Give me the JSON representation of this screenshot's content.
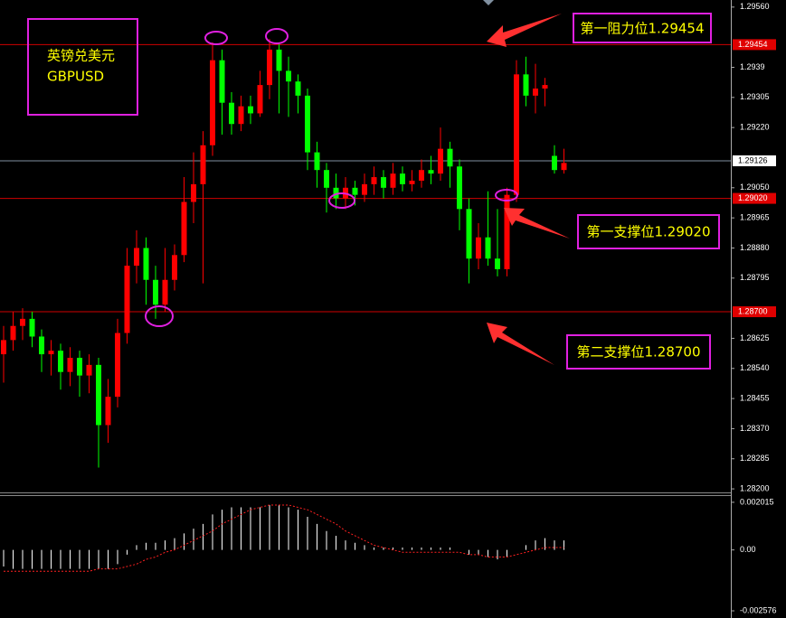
{
  "chart_data": [
    {
      "type": "candlestick",
      "title": "英镑兑美元",
      "subtitle": "GBPUSD",
      "annotations": [
        "第一阻力位1.29454",
        "第一支撑位1.29020",
        "第二支撑位1.28700"
      ],
      "up_color": "#ff0000",
      "down_color": "#00ff00",
      "open": [
        1.2858,
        1.2862,
        1.2866,
        1.2868,
        1.2863,
        1.2858,
        1.2859,
        1.2853,
        1.2857,
        1.2852,
        1.2855,
        1.2838,
        1.2846,
        1.2864,
        1.2883,
        1.2888,
        1.2879,
        1.2872,
        1.2879,
        1.2886,
        1.2901,
        1.2906,
        1.2917,
        1.2941,
        1.2929,
        1.2923,
        1.2928,
        1.2926,
        1.2934,
        1.2944,
        1.2938,
        1.2935,
        1.2931,
        1.2915,
        1.291,
        1.2905,
        1.2902,
        1.2905,
        1.2903,
        1.2906,
        1.2908,
        1.2905,
        1.2909,
        1.2906,
        1.2907,
        1.291,
        1.2909,
        1.2916,
        1.2911,
        1.2899,
        1.2885,
        1.2891,
        1.2885,
        1.2882,
        1.2903,
        1.2937,
        1.2931,
        1.2933,
        1.2914,
        1.291
      ],
      "high": [
        1.2866,
        1.287,
        1.2871,
        1.287,
        1.2865,
        1.2862,
        1.2861,
        1.286,
        1.2859,
        1.2858,
        1.2857,
        1.2851,
        1.2868,
        1.2888,
        1.2893,
        1.2891,
        1.2883,
        1.2888,
        1.2889,
        1.2908,
        1.2915,
        1.2921,
        1.2946,
        1.2944,
        1.2932,
        1.2931,
        1.2931,
        1.2938,
        1.2947,
        1.2946,
        1.2942,
        1.2937,
        1.2933,
        1.2918,
        1.2912,
        1.2909,
        1.2908,
        1.2907,
        1.2909,
        1.2911,
        1.291,
        1.2912,
        1.2911,
        1.291,
        1.2913,
        1.2914,
        1.2922,
        1.2918,
        1.2913,
        1.2902,
        1.2895,
        1.2904,
        1.2899,
        1.2905,
        1.2941,
        1.2942,
        1.294,
        1.2936,
        1.2917,
        1.2916
      ],
      "low": [
        1.285,
        1.2859,
        1.2862,
        1.286,
        1.2853,
        1.2852,
        1.2848,
        1.2849,
        1.2846,
        1.2847,
        1.2826,
        1.2833,
        1.2843,
        1.2861,
        1.2878,
        1.2872,
        1.2868,
        1.287,
        1.2876,
        1.2884,
        1.2895,
        1.2878,
        1.2914,
        1.292,
        1.292,
        1.2921,
        1.2923,
        1.2925,
        1.293,
        1.2926,
        1.2925,
        1.2926,
        1.291,
        1.2905,
        1.2898,
        1.2899,
        1.2899,
        1.29,
        1.2901,
        1.2903,
        1.2902,
        1.2903,
        1.2904,
        1.2904,
        1.2905,
        1.2906,
        1.2907,
        1.2905,
        1.2893,
        1.2878,
        1.2882,
        1.2883,
        1.288,
        1.288,
        1.2901,
        1.2928,
        1.2926,
        1.2928,
        1.2909,
        1.2909
      ],
      "close": [
        1.2862,
        1.2866,
        1.2868,
        1.2863,
        1.2858,
        1.2859,
        1.2853,
        1.2857,
        1.2852,
        1.2855,
        1.2838,
        1.2846,
        1.2864,
        1.2883,
        1.2888,
        1.2879,
        1.2872,
        1.2879,
        1.2886,
        1.2901,
        1.2906,
        1.2917,
        1.2941,
        1.2929,
        1.2923,
        1.2928,
        1.2926,
        1.2934,
        1.2944,
        1.2938,
        1.2935,
        1.2931,
        1.2915,
        1.291,
        1.2905,
        1.2902,
        1.2905,
        1.2903,
        1.2906,
        1.2908,
        1.2905,
        1.2909,
        1.2906,
        1.2907,
        1.291,
        1.2909,
        1.2916,
        1.2911,
        1.2899,
        1.2885,
        1.2891,
        1.2885,
        1.2882,
        1.2903,
        1.2937,
        1.2931,
        1.2933,
        1.2934,
        1.291,
        1.2912
      ],
      "ylim": [
        1.2819,
        1.2958
      ],
      "yticks": [
        {
          "value": 1.2956,
          "label": "1.29560"
        },
        1.2939,
        1.29305,
        {
          "value": 1.2922,
          "label": "1.29220"
        },
        {
          "value": 1.2905,
          "label": "1.29050"
        },
        1.28965,
        {
          "value": 1.2888,
          "label": "1.28880"
        },
        1.28795,
        1.28625,
        {
          "value": 1.2854,
          "label": "1.28540"
        },
        1.28455,
        {
          "value": 1.2837,
          "label": "1.28370"
        },
        1.28285,
        {
          "value": 1.282,
          "label": "1.28200"
        }
      ],
      "levels": [
        {
          "value": 1.29454,
          "color": "#d00000"
        },
        {
          "value": 1.29126,
          "color": "#8090a0"
        },
        {
          "value": 1.2902,
          "label": "1.29020",
          "color": "#d00000"
        },
        {
          "value": 1.287,
          "label": "1.28700",
          "color": "#d00000"
        }
      ]
    },
    {
      "type": "macd",
      "color": "#ffffff",
      "signal_color": "#ff2020",
      "values": [
        -0.0007,
        -0.0008,
        -0.0008,
        -0.0008,
        -0.0008,
        -0.0008,
        -0.0008,
        -0.0008,
        -0.0008,
        -0.0008,
        -0.0008,
        -0.0008,
        -0.0006,
        -0.0002,
        0.0002,
        0.0003,
        0.0003,
        0.0004,
        0.0005,
        0.0007,
        0.0009,
        0.0011,
        0.0015,
        0.0017,
        0.0018,
        0.0018,
        0.0018,
        0.0018,
        0.0019,
        0.0019,
        0.0018,
        0.0017,
        0.0014,
        0.0011,
        0.0008,
        0.0006,
        0.0004,
        0.0003,
        0.0002,
        0.0001,
        0.0001,
        0.0001,
        0.0001,
        0.0001,
        0.0001,
        0.0001,
        0.0001,
        0.0001,
        0,
        -0.0002,
        -0.0002,
        -0.0003,
        -0.0004,
        -0.0003,
        0,
        0.0002,
        0.0004,
        0.0005,
        0.0004,
        0.0004
      ],
      "signal": [
        -0.0009,
        -0.0009,
        -0.0009,
        -0.0009,
        -0.0009,
        -0.0009,
        -0.0009,
        -0.0009,
        -0.0009,
        -0.0009,
        -0.0008,
        -0.0008,
        -0.0008,
        -0.0007,
        -0.0006,
        -0.0004,
        -0.0003,
        -0.0001,
        0,
        0.0002,
        0.0004,
        0.0006,
        0.0008,
        0.0011,
        0.0013,
        0.0015,
        0.0017,
        0.0018,
        0.0019,
        0.0019,
        0.0019,
        0.0018,
        0.0017,
        0.0015,
        0.0013,
        0.0011,
        0.0008,
        0.0006,
        0.0004,
        0.0002,
        0.0001,
        0,
        -0.0001,
        -0.0001,
        -0.0001,
        -0.0001,
        -0.0001,
        -0.0001,
        -0.0001,
        -0.0002,
        -0.0002,
        -0.0003,
        -0.0003,
        -0.0003,
        -0.0002,
        -0.0001,
        0,
        0.0001,
        0.0001,
        0.0001
      ],
      "ylim": [
        -0.00288,
        0.00228
      ],
      "yticks": [
        0.002015,
        {
          "value": 0,
          "label": "0.00"
        },
        -0.002576
      ]
    }
  ]
}
